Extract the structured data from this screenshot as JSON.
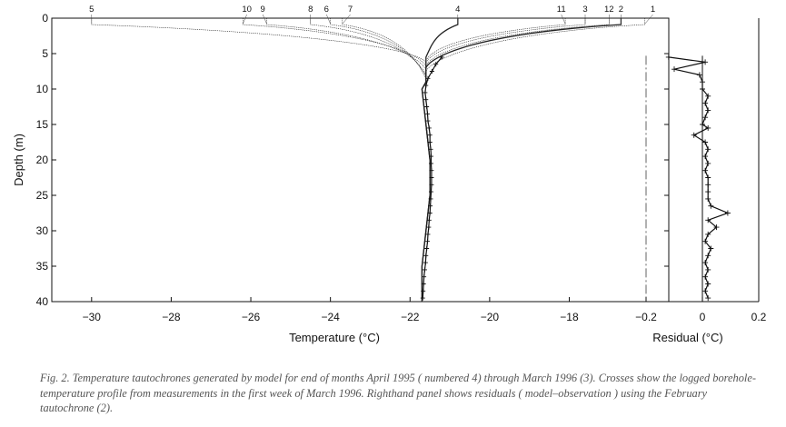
{
  "chart_data": [
    {
      "type": "line",
      "panel": "left",
      "xlabel": "Temperature (°C)",
      "ylabel": "Depth (m)",
      "xlim": [
        -31,
        -15.5
      ],
      "ylim": [
        40,
        0
      ],
      "x_ticks": [
        -30,
        -28,
        -26,
        -24,
        -22,
        -20,
        -18
      ],
      "y_ticks": [
        0,
        5,
        10,
        15,
        20,
        25,
        30,
        35,
        40
      ],
      "x_tick_labels": [
        "−30",
        "−28",
        "−26",
        "−24",
        "−22",
        "−20",
        "−18"
      ],
      "y_tick_labels": [
        "0",
        "5",
        "10",
        "15",
        "20",
        "25",
        "30",
        "35",
        "40"
      ],
      "grid": false,
      "deep_profile": {
        "depth": [
          9,
          10,
          15,
          20,
          25,
          30,
          35,
          40
        ],
        "temperature": [
          -21.6,
          -21.7,
          -21.6,
          -21.5,
          -21.5,
          -21.6,
          -21.7,
          -21.7
        ]
      },
      "series": [
        {
          "name": "1",
          "surface_temperature": -16.1,
          "pinch_depth": 7.5
        },
        {
          "name": "2",
          "surface_temperature": -16.7,
          "pinch_depth": 7.0
        },
        {
          "name": "3",
          "surface_temperature": -17.6,
          "pinch_depth": 6.3
        },
        {
          "name": "4",
          "surface_temperature": -20.8,
          "pinch_depth": 5.5
        },
        {
          "name": "5",
          "surface_temperature": -30.0,
          "pinch_depth": 6.3
        },
        {
          "name": "6",
          "surface_temperature": -24.0,
          "pinch_depth": 8.3
        },
        {
          "name": "7",
          "surface_temperature": -23.7,
          "pinch_depth": 8.5
        },
        {
          "name": "8",
          "surface_temperature": -24.5,
          "pinch_depth": 8.0
        },
        {
          "name": "9",
          "surface_temperature": -25.6,
          "pinch_depth": 7.3
        },
        {
          "name": "10",
          "surface_temperature": -26.2,
          "pinch_depth": 6.8
        },
        {
          "name": "11",
          "surface_temperature": -18.1,
          "pinch_depth": 6.0
        },
        {
          "name": "12",
          "surface_temperature": -17.0,
          "pinch_depth": 6.7
        }
      ],
      "label_temperatures": {
        "1": -15.9,
        "2": -16.7,
        "3": -17.6,
        "4": -20.8,
        "5": -30.0,
        "6": -24.1,
        "7": -23.5,
        "8": -24.5,
        "9": -25.7,
        "10": -26.1,
        "11": -18.2,
        "12": -17.0
      },
      "observations": {
        "name": "logged borehole-temperature profile",
        "depth": [
          5.5,
          6.5,
          7.5,
          8.5,
          9.5,
          10.5,
          11.5,
          12.5,
          13.5,
          14.5,
          15.5,
          16.5,
          17.5,
          18.5,
          19.5,
          20.5,
          21.5,
          22.5,
          23.5,
          24.5,
          25.5,
          26.5,
          27.5,
          28.5,
          29.5,
          30.5,
          31.5,
          32.5,
          33.5,
          34.5,
          35.5,
          36.5,
          37.5,
          38.5,
          39.5
        ],
        "temperature": [
          -21.2,
          -21.35,
          -21.45,
          -21.55,
          -21.6,
          -21.62,
          -21.6,
          -21.58,
          -21.56,
          -21.55,
          -21.52,
          -21.5,
          -21.5,
          -21.48,
          -21.47,
          -21.47,
          -21.46,
          -21.46,
          -21.46,
          -21.47,
          -21.48,
          -21.49,
          -21.5,
          -21.52,
          -21.53,
          -21.55,
          -21.56,
          -21.58,
          -21.6,
          -21.61,
          -21.63,
          -21.65,
          -21.66,
          -21.67,
          -21.68
        ]
      }
    },
    {
      "type": "line",
      "panel": "right",
      "xlabel": "Residual (°C)",
      "xlim": [
        -0.3,
        0.2
      ],
      "ylim": [
        40,
        0
      ],
      "x_ticks": [
        -0.2,
        0,
        0.2
      ],
      "x_tick_labels": [
        "−0.2",
        "0",
        "0.2"
      ],
      "reference_lines": [
        -0.2,
        0
      ],
      "series": [
        {
          "name": "residual",
          "depth": [
            5.5,
            6.2,
            7.2,
            8.0,
            9.0,
            10.0,
            11.0,
            12.0,
            13.0,
            14.0,
            15.0,
            15.5,
            16.5,
            17.5,
            18.5,
            19.5,
            20.5,
            21.5,
            22.5,
            23.5,
            24.5,
            25.5,
            26.5,
            27.5,
            28.5,
            29.5,
            30.5,
            31.5,
            32.5,
            33.5,
            34.5,
            35.5,
            36.5,
            37.5,
            38.5,
            39.5
          ],
          "values": [
            -0.12,
            0.01,
            -0.1,
            -0.01,
            0.0,
            0.0,
            0.02,
            0.01,
            0.02,
            0.01,
            0.0,
            0.02,
            -0.03,
            0.01,
            0.02,
            0.01,
            0.02,
            0.01,
            0.02,
            0.02,
            0.02,
            0.02,
            0.03,
            0.09,
            0.02,
            0.05,
            0.02,
            0.01,
            0.03,
            0.02,
            0.01,
            0.02,
            0.01,
            0.02,
            0.01,
            0.02
          ]
        }
      ]
    }
  ],
  "caption": "Fig. 2. Temperature tautochrones generated by model for end of months April 1995 ( numbered 4) through March 1996 (3). Crosses show the logged borehole-temperature profile from measurements in the first week of March 1996. Righthand panel shows residuals ( model–observation ) using the February tautochrone (2)."
}
